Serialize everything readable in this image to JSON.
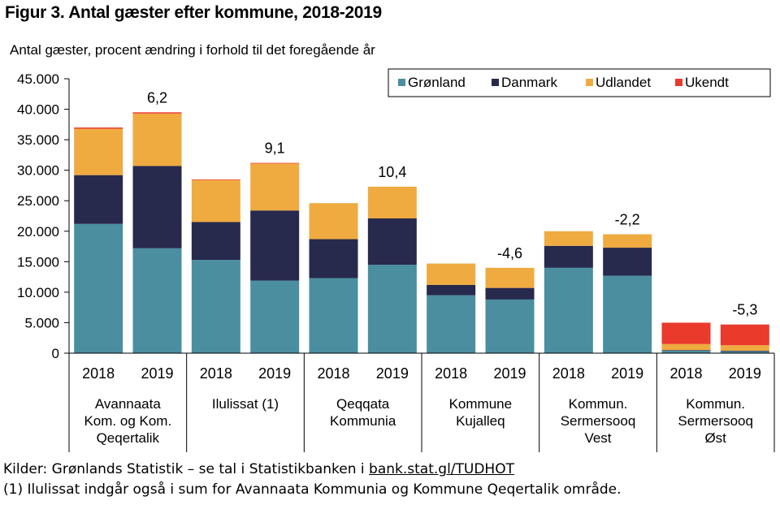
{
  "title": "Figur 3. Antal gæster efter kommune, 2018-2019",
  "subtitle": "Antal gæster, procent ændring i forhold til det foregående år",
  "colors": {
    "gronland": "#4a8ea0",
    "danmark": "#27294d",
    "udlandet": "#efab40",
    "ukendt": "#e93a2c"
  },
  "chart_data": {
    "type": "bar",
    "stacked": true,
    "title": "Figur 3. Antal gæster efter kommune, 2018-2019",
    "ylabel": "Antal gæster, procent ændring i forhold til det foregående år",
    "ylim": [
      0,
      45000
    ],
    "yticks": [
      0,
      5000,
      10000,
      15000,
      20000,
      25000,
      30000,
      35000,
      40000,
      45000
    ],
    "ytick_labels": [
      "0",
      "5.000",
      "10.000",
      "15.000",
      "20.000",
      "25.000",
      "30.000",
      "35.000",
      "40.000",
      "45.000"
    ],
    "legend_position": "top-right",
    "groups": [
      {
        "label": [
          "Avannaata",
          "Kom. og Kom.",
          "Qeqertalik"
        ],
        "change": "6,2"
      },
      {
        "label": [
          "Ilulissat (1)"
        ],
        "change": "9,1"
      },
      {
        "label": [
          "Qeqqata",
          "Kommunia"
        ],
        "change": "10,4"
      },
      {
        "label": [
          "Kommune",
          "Kujalleq"
        ],
        "change": "-4,6"
      },
      {
        "label": [
          "Kommun.",
          "Sermersooq",
          "Vest"
        ],
        "change": "-2,2"
      },
      {
        "label": [
          "Kommun.",
          "Sermersooq",
          "Øst"
        ],
        "change": "-5,3"
      }
    ],
    "categories": [
      "2018",
      "2019",
      "2018",
      "2019",
      "2018",
      "2019",
      "2018",
      "2019",
      "2018",
      "2019",
      "2018",
      "2019"
    ],
    "series": [
      {
        "name": "Grønland",
        "values": [
          21200,
          17200,
          15300,
          11900,
          12300,
          14500,
          9500,
          8800,
          14000,
          12700,
          400,
          300
        ]
      },
      {
        "name": "Danmark",
        "values": [
          8000,
          13500,
          6200,
          11500,
          6400,
          7600,
          1700,
          1900,
          3600,
          4600,
          100,
          100
        ]
      },
      {
        "name": "Udlandet",
        "values": [
          7600,
          8600,
          6900,
          7700,
          5900,
          5200,
          3500,
          3300,
          2400,
          2200,
          1000,
          900
        ]
      },
      {
        "name": "Ukendt",
        "values": [
          200,
          200,
          100,
          100,
          0,
          0,
          0,
          0,
          0,
          0,
          3500,
          3400
        ]
      }
    ]
  },
  "footer": {
    "source_prefix": "Kilder: Grønlands Statistik – se tal i Statistikbanken i ",
    "source_link": "bank.stat.gl/TUDHOT",
    "note": "(1) Ilulissat indgår også i sum for Avannaata Kommunia og Kommune Qeqertalik område."
  }
}
